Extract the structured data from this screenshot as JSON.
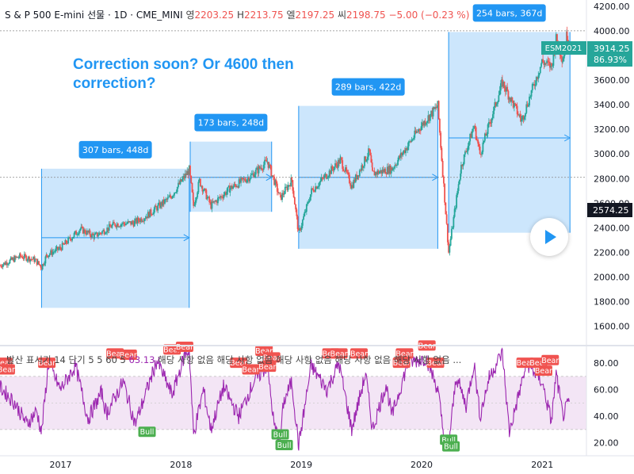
{
  "header": {
    "symbol": "S & P 500 E-mini 선물 · 1D · CME_MINI",
    "open_label": "영",
    "open": "2203.25",
    "high_label": "H",
    "high": "2213.75",
    "low_label": "엘",
    "low": "2197.25",
    "close_label": "씨",
    "close": "2198.75",
    "change": "−5.00 (−0.23 %)"
  },
  "note": "Correction soon?  Or 4600 then correction?",
  "badges": {
    "symbol": "ESM2021",
    "price": "3914.25",
    "percent": "86.93%",
    "cursor_price": "2574.25"
  },
  "indicator_header": {
    "label": "발산 표시기 14 단기 5 5 60 5",
    "value": "63.13",
    "rest": "해당 사항 없음  해당 사항 없음  해당 사항 없음  해당 사항 없음  해당 사항 없음 ..."
  },
  "colors": {
    "up": "#26a69a",
    "down": "#ef5350",
    "accent": "#2196f3",
    "range_fill": "#bbdefb",
    "indicator": "#9c27b0",
    "ob_os_band": "#f3e5f5",
    "bull": "#4caf50",
    "bear": "#f05350"
  },
  "chart_data": [
    {
      "type": "line",
      "series": [
        {
          "points": [
            [
              "2016-07-01",
              2095
            ],
            [
              "2016-09-01",
              2170
            ],
            [
              "2016-10-15",
              2140
            ],
            [
              "2016-11-04",
              2080
            ],
            [
              "2016-11-20",
              2180
            ],
            [
              "2016-12-31",
              2235
            ],
            [
              "2017-03-01",
              2390
            ],
            [
              "2017-04-13",
              2330
            ],
            [
              "2017-06-15",
              2430
            ],
            [
              "2017-08-10",
              2440
            ],
            [
              "2017-09-20",
              2500
            ],
            [
              "2017-11-30",
              2650
            ],
            [
              "2018-01-26",
              2870
            ],
            [
              "2018-02-08",
              2580
            ],
            [
              "2018-02-26",
              2780
            ],
            [
              "2018-04-02",
              2580
            ],
            [
              "2018-05-30",
              2720
            ],
            [
              "2018-08-01",
              2820
            ],
            [
              "2018-09-20",
              2940
            ],
            [
              "2018-10-29",
              2640
            ],
            [
              "2018-12-03",
              2790
            ],
            [
              "2018-12-24",
              2350
            ],
            [
              "2019-02-01",
              2700
            ],
            [
              "2019-04-30",
              2950
            ],
            [
              "2019-06-03",
              2740
            ],
            [
              "2019-07-26",
              3020
            ],
            [
              "2019-08-05",
              2840
            ],
            [
              "2019-10-03",
              2880
            ],
            [
              "2019-12-31",
              3230
            ],
            [
              "2020-02-19",
              3390
            ],
            [
              "2020-03-23",
              2200
            ],
            [
              "2020-04-30",
              2900
            ],
            [
              "2020-06-08",
              3230
            ],
            [
              "2020-06-26",
              3000
            ],
            [
              "2020-09-02",
              3580
            ],
            [
              "2020-10-30",
              3270
            ],
            [
              "2020-12-31",
              3750
            ],
            [
              "2021-01-29",
              3710
            ],
            [
              "2021-02-12",
              3930
            ],
            [
              "2021-03-04",
              3770
            ],
            [
              "2021-03-17",
              3970
            ],
            [
              "2021-03-26",
              3914
            ]
          ]
        }
      ],
      "ylim": [
        1450,
        4250
      ],
      "yticks": [
        1600,
        1800,
        2000,
        2200,
        2400,
        2600,
        2800,
        3000,
        3200,
        3400,
        3600,
        3800,
        4000,
        4200
      ],
      "xlim": [
        "2016-07-01",
        "2021-05-15"
      ],
      "xticks": [
        "2017",
        "2018",
        "2019",
        "2020",
        "2021"
      ],
      "reference_lines": [
        2810,
        4000
      ],
      "ranges": [
        {
          "label": "307 bars, 448d",
          "start": "2016-11-04",
          "end": "2018-01-26",
          "low": 1750,
          "high": 2880,
          "arrow_y": 2320
        },
        {
          "label": "173 bars, 248d",
          "start": "2018-01-29",
          "end": "2018-10-03",
          "low": 2530,
          "high": 3100,
          "arrow_y": 2810
        },
        {
          "label": "289 bars, 422d",
          "start": "2018-12-24",
          "end": "2020-02-19",
          "low": 2230,
          "high": 3390,
          "arrow_y": 2810
        },
        {
          "label": "254 bars, 367d",
          "start": "2020-03-23",
          "end": "2021-03-26",
          "low": 2360,
          "high": 3990,
          "arrow_y": 3130
        }
      ]
    },
    {
      "type": "line",
      "series": [
        {
          "points": [
            [
              "2016-07-01",
              62
            ],
            [
              "2016-08-15",
              50
            ],
            [
              "2016-09-20",
              34
            ],
            [
              "2016-10-20",
              44
            ],
            [
              "2016-11-04",
              28
            ],
            [
              "2016-11-25",
              80
            ],
            [
              "2016-12-31",
              60
            ],
            [
              "2017-02-15",
              78
            ],
            [
              "2017-03-25",
              38
            ],
            [
              "2017-05-05",
              58
            ],
            [
              "2017-05-20",
              42
            ],
            [
              "2017-07-10",
              66
            ],
            [
              "2017-08-15",
              34
            ],
            [
              "2017-09-20",
              60
            ],
            [
              "2017-10-20",
              82
            ],
            [
              "2017-12-05",
              56
            ],
            [
              "2018-01-12",
              86
            ],
            [
              "2018-01-26",
              90
            ],
            [
              "2018-02-08",
              26
            ],
            [
              "2018-03-10",
              60
            ],
            [
              "2018-04-02",
              30
            ],
            [
              "2018-05-10",
              62
            ],
            [
              "2018-06-25",
              40
            ],
            [
              "2018-08-10",
              66
            ],
            [
              "2018-09-20",
              78
            ],
            [
              "2018-10-11",
              32
            ],
            [
              "2018-10-29",
              22
            ],
            [
              "2018-11-08",
              50
            ],
            [
              "2018-12-03",
              66
            ],
            [
              "2018-12-24",
              18
            ],
            [
              "2019-01-31",
              78
            ],
            [
              "2019-03-20",
              60
            ],
            [
              "2019-04-25",
              80
            ],
            [
              "2019-06-03",
              30
            ],
            [
              "2019-07-15",
              72
            ],
            [
              "2019-08-05",
              30
            ],
            [
              "2019-09-15",
              64
            ],
            [
              "2019-10-03",
              40
            ],
            [
              "2019-11-20",
              80
            ],
            [
              "2020-01-15",
              84
            ],
            [
              "2020-02-19",
              60
            ],
            [
              "2020-03-10",
              22
            ],
            [
              "2020-03-23",
              18
            ],
            [
              "2020-04-15",
              70
            ],
            [
              "2020-05-15",
              48
            ],
            [
              "2020-06-08",
              80
            ],
            [
              "2020-06-26",
              40
            ],
            [
              "2020-07-25",
              70
            ],
            [
              "2020-09-02",
              88
            ],
            [
              "2020-09-23",
              28
            ],
            [
              "2020-11-15",
              80
            ],
            [
              "2020-12-31",
              66
            ],
            [
              "2021-01-29",
              36
            ],
            [
              "2021-02-12",
              72
            ],
            [
              "2021-03-04",
              40
            ],
            [
              "2021-03-26",
              52
            ]
          ]
        }
      ],
      "ylim": [
        12,
        92
      ],
      "yticks": [
        20,
        40,
        60,
        80
      ],
      "bands": [
        30,
        70
      ],
      "signals": [
        {
          "label": "Bear",
          "date": "2016-07-12",
          "value": 80
        },
        {
          "label": "Bear",
          "date": "2016-07-20",
          "value": 75
        },
        {
          "label": "Bear",
          "date": "2016-11-20",
          "value": 80
        },
        {
          "label": "Bear",
          "date": "2017-06-15",
          "value": 87
        },
        {
          "label": "Bear",
          "date": "2017-07-25",
          "value": 86
        },
        {
          "label": "Bull",
          "date": "2017-09-20",
          "value": 28
        },
        {
          "label": "Bear",
          "date": "2017-12-05",
          "value": 90
        },
        {
          "label": "Bear",
          "date": "2018-01-12",
          "value": 92
        },
        {
          "label": "Bear",
          "date": "2018-06-25",
          "value": 80
        },
        {
          "label": "Bear",
          "date": "2018-08-01",
          "value": 75
        },
        {
          "label": "Bear",
          "date": "2018-09-10",
          "value": 89
        },
        {
          "label": "Bear",
          "date": "2018-10-03",
          "value": 84
        },
        {
          "label": "Bear",
          "date": "2018-09-20",
          "value": 77
        },
        {
          "label": "Bull",
          "date": "2018-10-29",
          "value": 26
        },
        {
          "label": "Bull",
          "date": "2018-11-10",
          "value": 18
        },
        {
          "label": "Bear",
          "date": "2019-04-01",
          "value": 87
        },
        {
          "label": "Bear",
          "date": "2019-04-25",
          "value": 87
        },
        {
          "label": "Bear",
          "date": "2019-06-25",
          "value": 87
        },
        {
          "label": "Bear",
          "date": "2019-11-01",
          "value": 80
        },
        {
          "label": "Bear",
          "date": "2019-11-10",
          "value": 87
        },
        {
          "label": "Bear",
          "date": "2020-01-17",
          "value": 93
        },
        {
          "label": "Bear",
          "date": "2020-02-12",
          "value": 80
        },
        {
          "label": "Bull",
          "date": "2020-03-23",
          "value": 22
        },
        {
          "label": "Bull",
          "date": "2020-03-30",
          "value": 17
        },
        {
          "label": "Bear",
          "date": "2020-11-10",
          "value": 80
        },
        {
          "label": "Bear",
          "date": "2020-12-20",
          "value": 80
        },
        {
          "label": "Bear",
          "date": "2021-01-25",
          "value": 82
        },
        {
          "label": "Bear",
          "date": "2021-01-05",
          "value": 74
        }
      ]
    }
  ]
}
